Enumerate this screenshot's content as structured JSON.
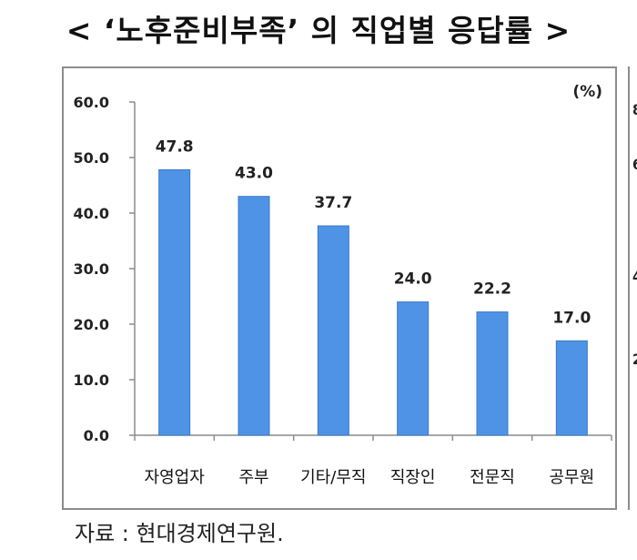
{
  "header": {
    "title": "< ‘노후준비부족’ 의 직업별 응답률 >"
  },
  "footer": {
    "source": "자료 : 현대경제연구원."
  },
  "right_axis_partial_ticks": [
    "8",
    "6",
    "4",
    "2"
  ],
  "chart_data": {
    "type": "bar",
    "title": "< ‘노후준비부족’ 의 직업별 응답률 >",
    "unit": "(%)",
    "categories": [
      "자영업자",
      "주부",
      "기타/무직",
      "직장인",
      "전문직",
      "공무원"
    ],
    "values": [
      47.8,
      43.0,
      37.7,
      24.0,
      22.2,
      17.0
    ],
    "data_labels": [
      "47.8",
      "43.0",
      "37.7",
      "24.0",
      "22.2",
      "17.0"
    ],
    "ylim": [
      0,
      60
    ],
    "yticks": [
      "0.0",
      "10.0",
      "20.0",
      "30.0",
      "40.0",
      "50.0",
      "60.0"
    ],
    "grid": false,
    "bar_color": "#4f93e6",
    "bar_edge_color": "#3b78c8",
    "axis_color": "#8c8c8c"
  }
}
